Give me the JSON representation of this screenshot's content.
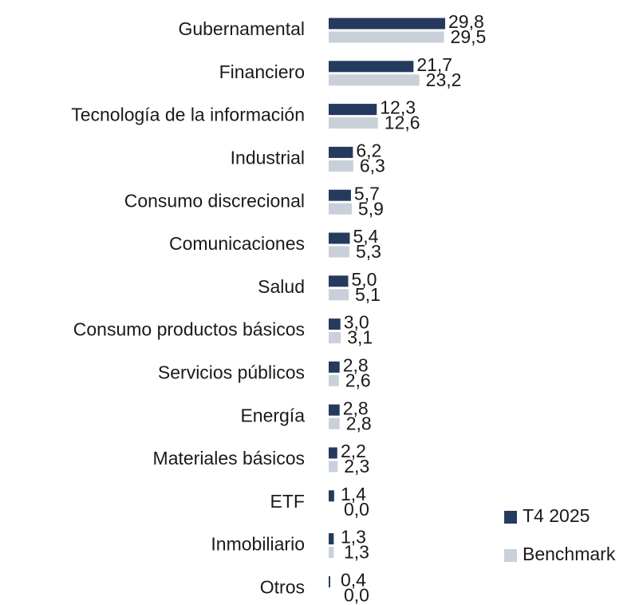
{
  "chart_data": {
    "type": "bar",
    "orientation": "horizontal",
    "categories": [
      "Gubernamental",
      "Financiero",
      "Tecnología de la información",
      "Industrial",
      "Consumo discrecional",
      "Comunicaciones",
      "Salud",
      "Consumo productos básicos",
      "Servicios públicos",
      "Energía",
      "Materiales básicos",
      "ETF",
      "Inmobiliario",
      "Otros"
    ],
    "series": [
      {
        "name": "T4 2025",
        "color": "#243b5e",
        "values": [
          29.8,
          21.7,
          12.3,
          6.2,
          5.7,
          5.4,
          5.0,
          3.0,
          2.8,
          2.8,
          2.2,
          1.4,
          1.3,
          0.4
        ],
        "value_labels": [
          "29,8",
          "21,7",
          "12,3",
          "6,2",
          "5,7",
          "5,4",
          "5,0",
          "3,0",
          "2,8",
          "2,8",
          "2,2",
          "1,4",
          "1,3",
          "0,4"
        ]
      },
      {
        "name": "Benchmark",
        "color": "#c9d0da",
        "values": [
          29.5,
          23.2,
          12.6,
          6.3,
          5.9,
          5.3,
          5.1,
          3.1,
          2.6,
          2.8,
          2.3,
          0.0,
          1.3,
          0.0
        ],
        "value_labels": [
          "29,5",
          "23,2",
          "12,6",
          "6,3",
          "5,9",
          "5,3",
          "5,1",
          "3,1",
          "2,6",
          "2,8",
          "2,3",
          "0,0",
          "1,3",
          "0,0"
        ]
      }
    ],
    "legend": "bottom-right"
  }
}
